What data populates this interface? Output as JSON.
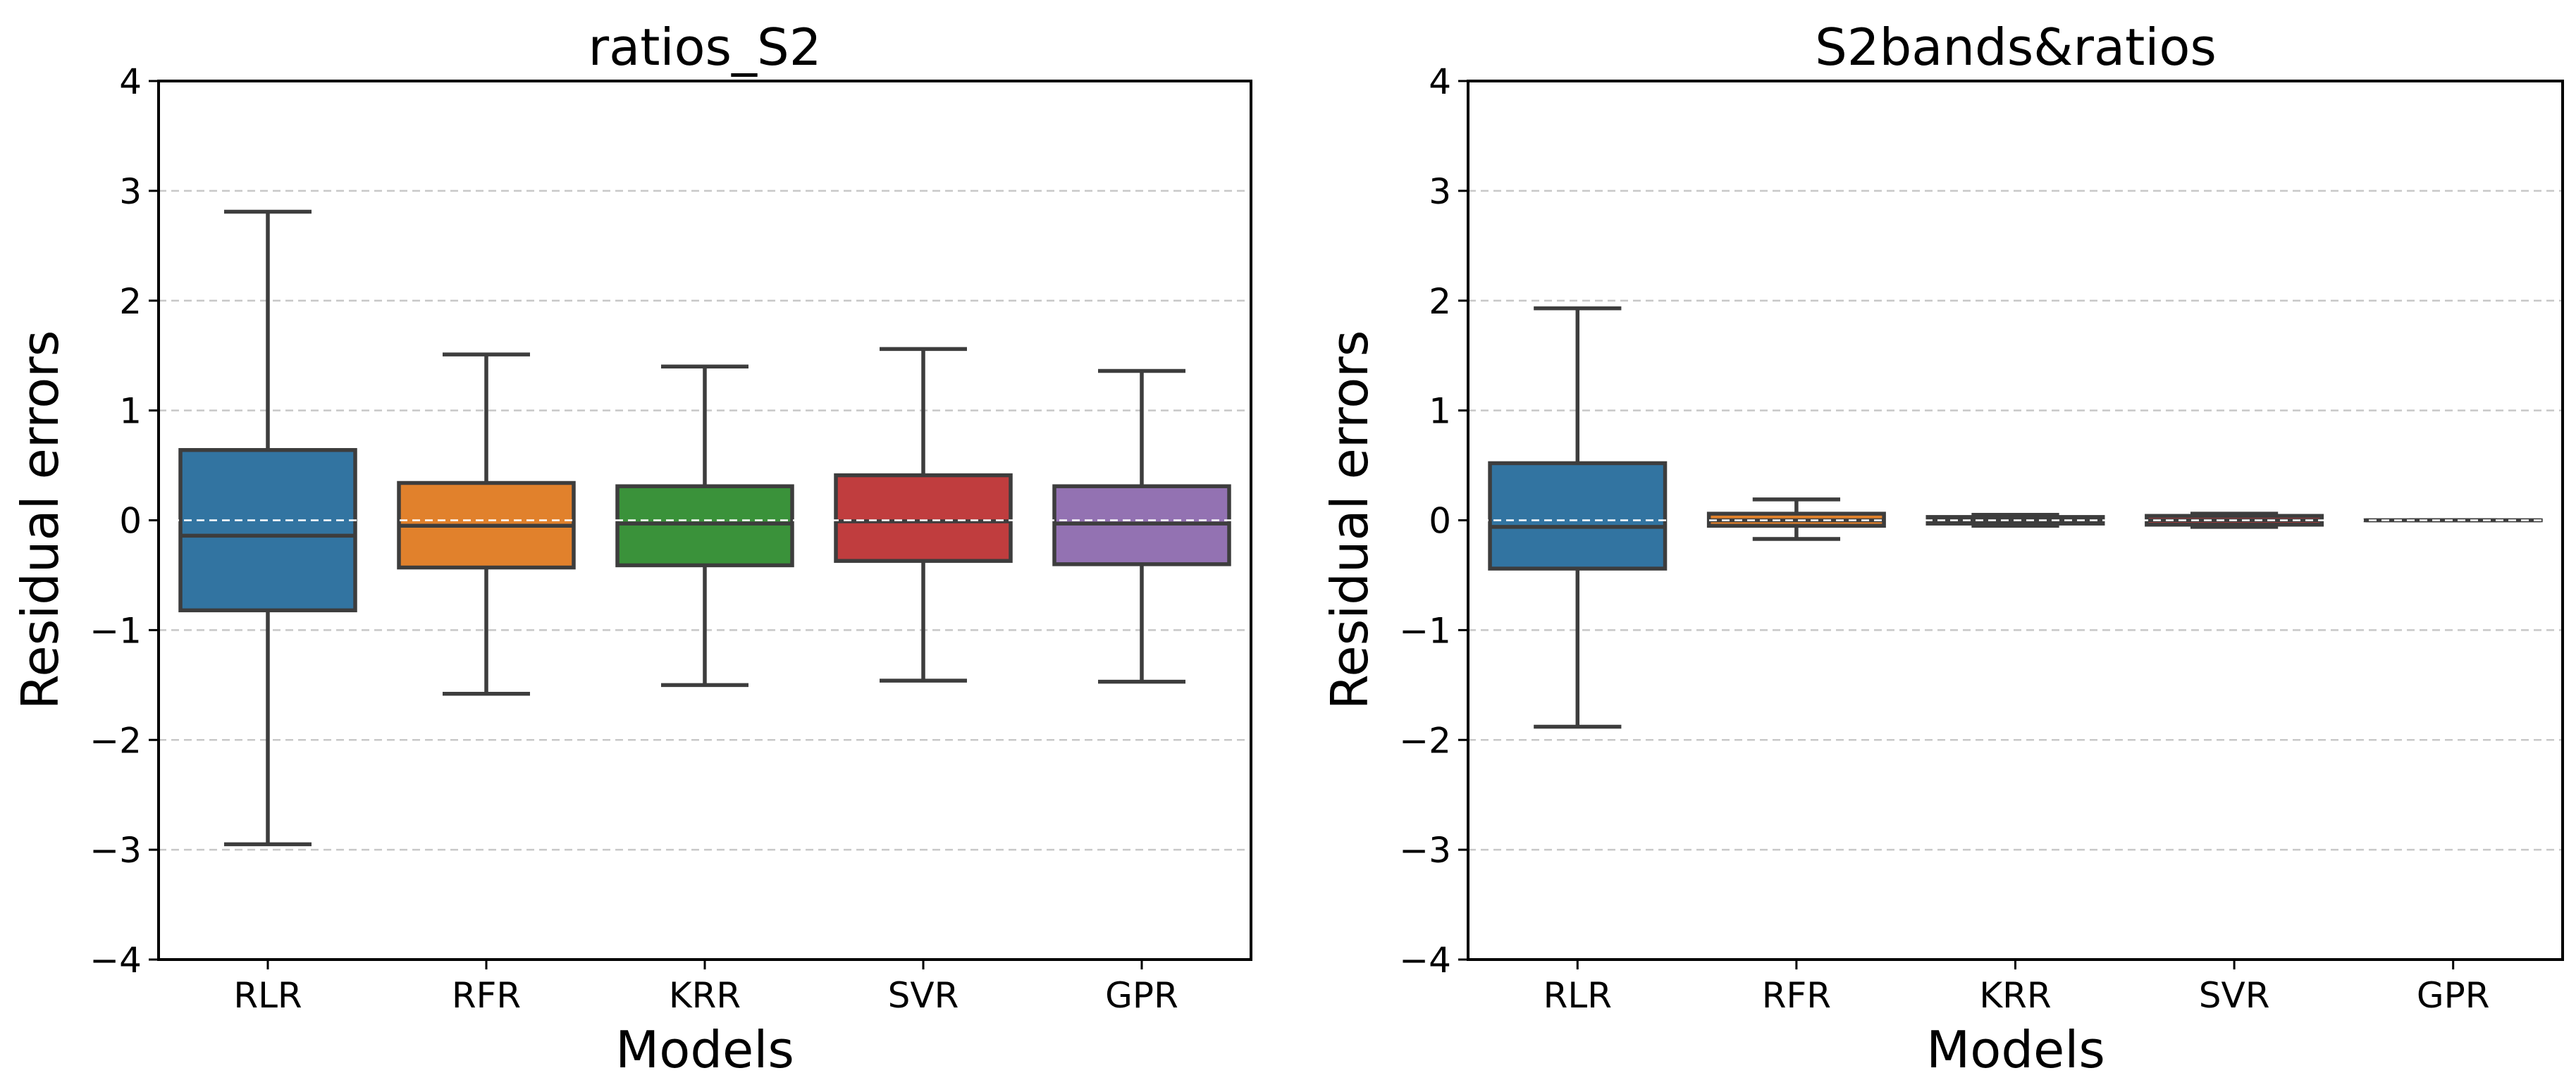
{
  "chart_data": [
    {
      "type": "box",
      "title": "ratios_S2",
      "xlabel": "Models",
      "ylabel": "Residual errors",
      "ylim": [
        -4,
        4
      ],
      "yticks": [
        4,
        3,
        2,
        1,
        0,
        -1,
        -2,
        -3,
        -4
      ],
      "ytick_labels": [
        "4",
        "3",
        "2",
        "1",
        "0",
        "−1",
        "−2",
        "−3",
        "−4"
      ],
      "grid": "horizontal dashed",
      "zero_line": "white dashed",
      "categories": [
        "RLR",
        "RFR",
        "KRR",
        "SVR",
        "GPR"
      ],
      "boxes": [
        {
          "name": "RLR",
          "color": "#3274A1",
          "whisker_low": -2.95,
          "q1": -0.82,
          "median": -0.14,
          "q3": 0.64,
          "whisker_high": 2.81
        },
        {
          "name": "RFR",
          "color": "#E1812C",
          "whisker_low": -1.58,
          "q1": -0.43,
          "median": -0.05,
          "q3": 0.34,
          "whisker_high": 1.51
        },
        {
          "name": "KRR",
          "color": "#3A923A",
          "whisker_low": -1.5,
          "q1": -0.41,
          "median": -0.03,
          "q3": 0.31,
          "whisker_high": 1.4
        },
        {
          "name": "SVR",
          "color": "#C03D3E",
          "whisker_low": -1.46,
          "q1": -0.37,
          "median": -0.01,
          "q3": 0.41,
          "whisker_high": 1.56
        },
        {
          "name": "GPR",
          "color": "#9372B2",
          "whisker_low": -1.47,
          "q1": -0.4,
          "median": -0.03,
          "q3": 0.31,
          "whisker_high": 1.36
        }
      ]
    },
    {
      "type": "box",
      "title": "S2bands&ratios",
      "xlabel": "Models",
      "ylabel": "Residual errors",
      "ylim": [
        -4,
        4
      ],
      "yticks": [
        4,
        3,
        2,
        1,
        0,
        -1,
        -2,
        -3,
        -4
      ],
      "ytick_labels": [
        "4",
        "3",
        "2",
        "1",
        "0",
        "−1",
        "−2",
        "−3",
        "−4"
      ],
      "grid": "horizontal dashed",
      "zero_line": "white dashed",
      "categories": [
        "RLR",
        "RFR",
        "KRR",
        "SVR",
        "GPR"
      ],
      "boxes": [
        {
          "name": "RLR",
          "color": "#3274A1",
          "whisker_low": -1.88,
          "q1": -0.44,
          "median": -0.06,
          "q3": 0.52,
          "whisker_high": 1.93
        },
        {
          "name": "RFR",
          "color": "#E1812C",
          "whisker_low": -0.17,
          "q1": -0.05,
          "median": 0.0,
          "q3": 0.06,
          "whisker_high": 0.19
        },
        {
          "name": "KRR",
          "color": "#3A923A",
          "whisker_low": -0.05,
          "q1": -0.03,
          "median": 0.0,
          "q3": 0.03,
          "whisker_high": 0.05
        },
        {
          "name": "SVR",
          "color": "#C03D3E",
          "whisker_low": -0.06,
          "q1": -0.04,
          "median": 0.0,
          "q3": 0.04,
          "whisker_high": 0.06
        },
        {
          "name": "GPR",
          "color": "#9372B2",
          "whisker_low": 0.0,
          "q1": 0.0,
          "median": 0.0,
          "q3": 0.0,
          "whisker_high": 0.0
        }
      ]
    }
  ]
}
